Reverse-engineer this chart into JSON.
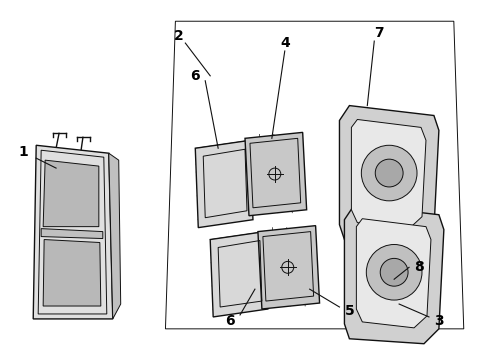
{
  "background_color": "#ffffff",
  "line_color": "#111111",
  "label_color": "#000000",
  "label_fontsize": 10,
  "label_fontweight": "bold",
  "gray_light": "#e0e0e0",
  "gray_mid": "#c0c0c0",
  "gray_dark": "#999999"
}
